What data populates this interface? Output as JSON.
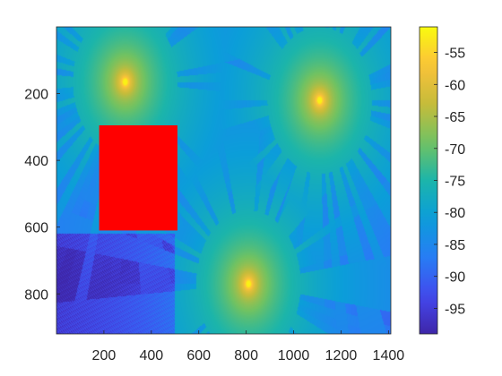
{
  "chart_data": {
    "type": "heatmap",
    "title": "",
    "xlabel": "",
    "ylabel": "",
    "xlim": [
      0,
      1410
    ],
    "ylim": [
      920,
      0
    ],
    "x_ticks": [
      200,
      400,
      600,
      800,
      1000,
      1200,
      1400
    ],
    "y_ticks": [
      200,
      400,
      600,
      800
    ],
    "grid": false,
    "colorbar": {
      "location": "right",
      "range": [
        -99,
        -51
      ],
      "ticks": [
        -55,
        -60,
        -65,
        -70,
        -75,
        -80,
        -85,
        -90,
        -95
      ],
      "colormap": "parula"
    },
    "sources": [
      {
        "x": 290,
        "y": 165,
        "peak": -52
      },
      {
        "x": 1110,
        "y": 220,
        "peak": -52
      },
      {
        "x": 810,
        "y": 770,
        "peak": -52
      }
    ],
    "obstacle": {
      "x": [
        180,
        510
      ],
      "y": [
        295,
        610
      ],
      "color": "#ff0000"
    },
    "colors": {
      "obstacle": "#ff0000",
      "low": "#3e26a8",
      "high": "#f9fb0e"
    }
  }
}
